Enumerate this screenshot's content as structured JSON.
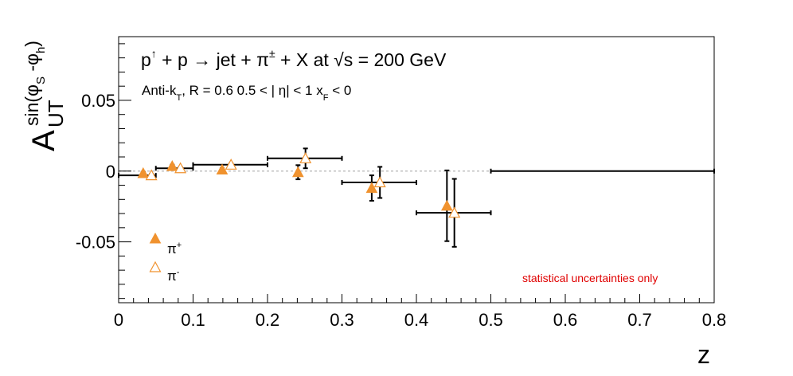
{
  "chart_data": {
    "type": "scatter",
    "title": "p↑ + p → jet + π± + X at √s = 200 GeV",
    "title_parts": {
      "p1": "p",
      "arrow_up": "↑",
      "plus1": " + p ",
      "arrow": "→",
      "jet": " jet + π",
      "pm": "±",
      "rest": " + X at  ",
      "sqrt": "√",
      "s_energy": "s = 200 GeV"
    },
    "subtitle_parts": {
      "antik": "Anti-k",
      "T": "T",
      "r_eta": ", R = 0.6   0.5 < | η| < 1   x",
      "F": "F",
      "xf_cut": " < 0"
    },
    "xlabel": "z",
    "ylabel_parts": {
      "A": "A",
      "UT": "UT",
      "sin_open": "sin(φ",
      "S": "S",
      "minus_phi": " -φ",
      "h": "h",
      "close": ")"
    },
    "xlim": [
      0,
      0.8
    ],
    "ylim": [
      -0.093,
      0.095
    ],
    "x_ticks": [
      0,
      0.1,
      0.2,
      0.3,
      0.4,
      0.5,
      0.6,
      0.7,
      0.8
    ],
    "x_tick_labels": [
      "0",
      "0.1",
      "0.2",
      "0.3",
      "0.4",
      "0.5",
      "0.6",
      "0.7",
      "0.8"
    ],
    "y_ticks": [
      -0.05,
      0,
      0.05
    ],
    "y_tick_labels": [
      "-0.05",
      "0",
      "0.05"
    ],
    "grid": false,
    "zero_line": true,
    "legend_position": "bottom-left",
    "annotation": "statistical uncertainties only",
    "colors": {
      "series": "#f0922e",
      "annotation": "#e00000",
      "axis": "#000000",
      "zero_line": "#c0c0c0"
    },
    "series": [
      {
        "name": "π+",
        "legend_base": "π",
        "legend_sup": "+",
        "marker": "filled-triangle",
        "points": [
          {
            "x": 0.033,
            "y": -0.0015,
            "xerr": [
              0.0,
              0.0
            ],
            "yerr": 0.001
          },
          {
            "x": 0.072,
            "y": 0.0035,
            "xerr": [
              0.0,
              0.0
            ],
            "yerr": 0.001
          },
          {
            "x": 0.139,
            "y": 0.001,
            "xerr": [
              0.0,
              0.0
            ],
            "yerr": 0.001
          },
          {
            "x": 0.241,
            "y": -0.0008,
            "xerr": [
              0.0,
              0.0
            ],
            "yerr": 0.005
          },
          {
            "x": 0.34,
            "y": -0.012,
            "xerr": [
              0.0,
              0.0
            ],
            "yerr": 0.009
          },
          {
            "x": 0.441,
            "y": -0.0245,
            "xerr": [
              0.0,
              0.0
            ],
            "yerr": 0.025
          }
        ]
      },
      {
        "name": "π-",
        "legend_base": "π",
        "legend_sup": "-",
        "marker": "open-triangle",
        "points": [
          {
            "x": 0.044,
            "y": -0.003,
            "xerr": [
              0.044,
              0.006
            ],
            "yerr": 0.001
          },
          {
            "x": 0.083,
            "y": 0.002,
            "xerr": [
              0.033,
              0.017
            ],
            "yerr": 0.001
          },
          {
            "x": 0.151,
            "y": 0.0045,
            "xerr": [
              0.051,
              0.049
            ],
            "yerr": 0.001
          },
          {
            "x": 0.251,
            "y": 0.009,
            "xerr": [
              0.051,
              0.049
            ],
            "yerr": 0.007
          },
          {
            "x": 0.351,
            "y": -0.008,
            "xerr": [
              0.051,
              0.049
            ],
            "yerr": 0.011
          },
          {
            "x": 0.451,
            "y": -0.0295,
            "xerr": [
              0.051,
              0.049
            ],
            "yerr": 0.024
          },
          {
            "x": 0.65,
            "y": 0.0,
            "xerr": [
              0.15,
              0.15
            ],
            "yerr": 0.0,
            "no_marker": true
          }
        ]
      }
    ]
  }
}
